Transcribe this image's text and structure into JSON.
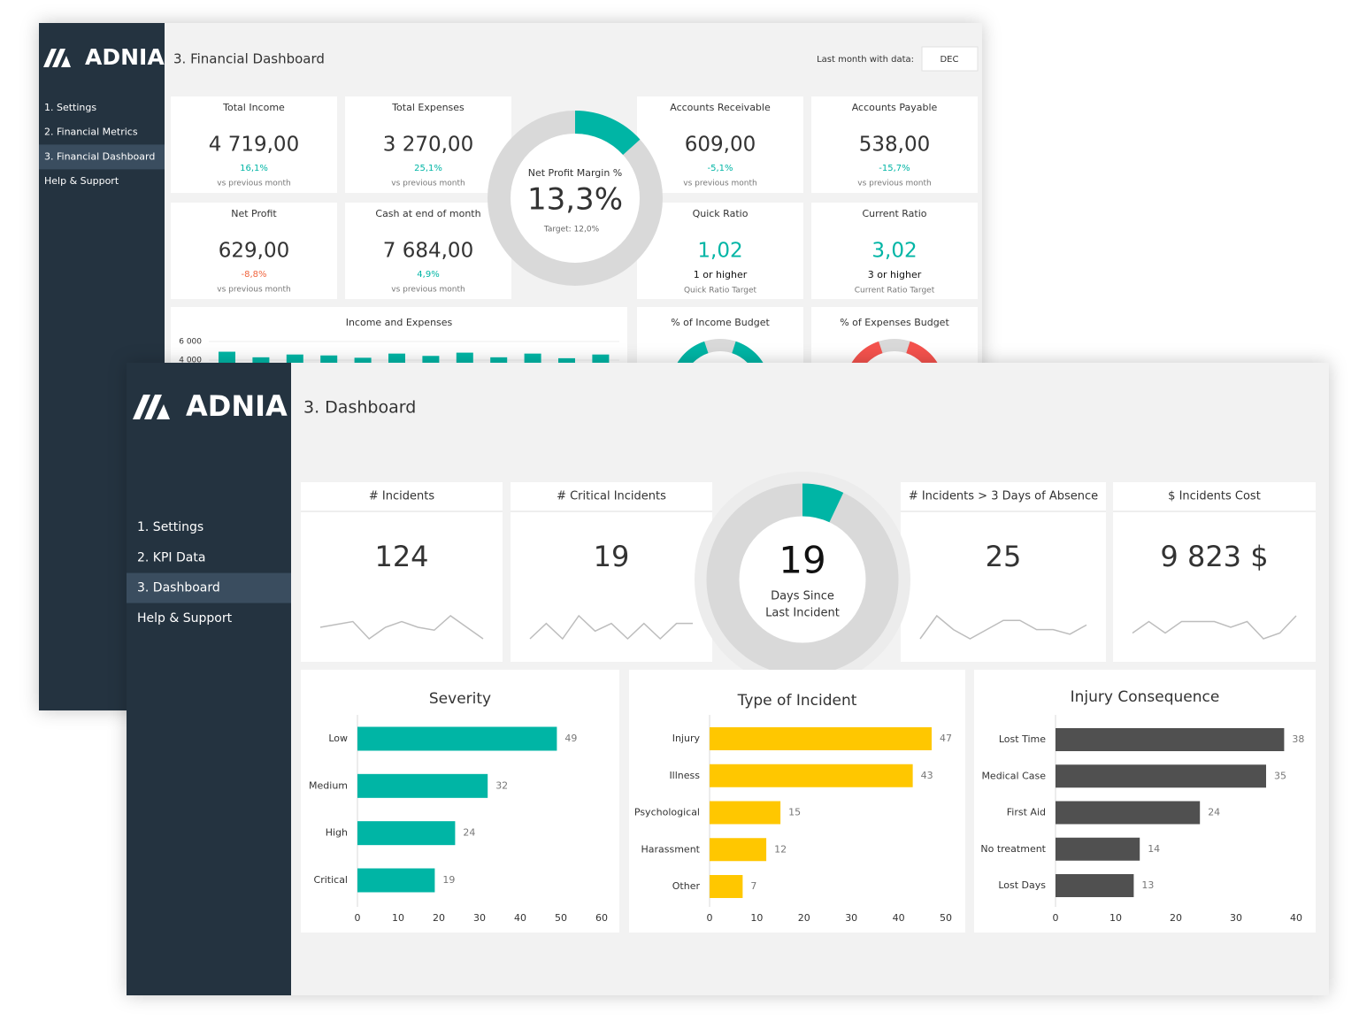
{
  "back": {
    "logo": "ADNIA",
    "title": "3. Financial Dashboard",
    "last_month_label": "Last month with data:",
    "last_month": "DEC",
    "nav": [
      "1. Settings",
      "2. Financial Metrics",
      "3. Financial Dashboard",
      "Help & Support"
    ],
    "active_nav": 2,
    "kpis": [
      {
        "title": "Total Income",
        "value": "4 719,00",
        "change": "16,1%",
        "change_color": "#00b5a5",
        "note": "vs previous month"
      },
      {
        "title": "Total Expenses",
        "value": "3 270,00",
        "change": "25,1%",
        "change_color": "#00b5a5",
        "note": "vs previous month"
      },
      {
        "title": "Accounts Receivable",
        "value": "609,00",
        "change": "-5,1%",
        "change_color": "#00b5a5",
        "note": "vs previous month"
      },
      {
        "title": "Accounts Payable",
        "value": "538,00",
        "change": "-15,7%",
        "change_color": "#00b5a5",
        "note": "vs previous month"
      },
      {
        "title": "Net Profit",
        "value": "629,00",
        "change": "-8,8%",
        "change_color": "#f0653f",
        "note": "vs previous month"
      },
      {
        "title": "Cash at end of month",
        "value": "7 684,00",
        "change": "4,9%",
        "change_color": "#00b5a5",
        "note": "vs previous month"
      }
    ],
    "margin": {
      "type": "donut",
      "title": "Net Profit Margin %",
      "value": 13.3,
      "value_label": "13,3%",
      "target": "Target: 12,0%",
      "color": "#00b5a5"
    },
    "ratios": [
      {
        "title": "Quick Ratio",
        "value": "1,02",
        "target": "1 or higher",
        "note": "Quick Ratio Target"
      },
      {
        "title": "Current Ratio",
        "value": "3,02",
        "target": "3 or higher",
        "note": "Current Ratio Target"
      }
    ],
    "income_chart": {
      "type": "bar",
      "title": "Income and Expenses",
      "values": [
        4900,
        4300,
        4600,
        4500,
        4250,
        4700,
        4450,
        4800,
        4300,
        4700,
        4200,
        4600
      ],
      "color": "#00b5a5",
      "ylim": [
        0,
        6000
      ],
      "yticks": [
        {
          "value": 4000,
          "label": "4 000"
        },
        {
          "value": 6000,
          "label": "6 000"
        }
      ]
    },
    "budgets": [
      {
        "type": "donut",
        "title": "% of Income Budget",
        "value": 90,
        "color": "#00b5a5"
      },
      {
        "type": "donut",
        "title": "% of Expenses Budget",
        "value": 90,
        "color": "#f4524d"
      }
    ]
  },
  "front": {
    "logo": "ADNIA",
    "title": "3. Dashboard",
    "nav": [
      "1. Settings",
      "2. KPI Data",
      "3. Dashboard",
      "Help & Support"
    ],
    "active_nav": 2,
    "kpis": [
      {
        "title": "# Incidents",
        "value": "124",
        "sparkline": [
          5,
          5.5,
          6,
          3,
          5,
          6,
          5,
          4.5,
          7,
          5,
          3
        ]
      },
      {
        "title": "# Critical Incidents",
        "value": "19",
        "sparkline": [
          4,
          6,
          4,
          7,
          5,
          6,
          4,
          6,
          4,
          6,
          6
        ]
      },
      {
        "title": "# Incidents > 3 Days of Absence",
        "value": "25",
        "sparkline": [
          2,
          7,
          4,
          2,
          4,
          6,
          6,
          4,
          4,
          3,
          5
        ]
      },
      {
        "title": "$ Incidents Cost",
        "value": "9 823 $",
        "sparkline": [
          4,
          6,
          4,
          6,
          6,
          6,
          5,
          6,
          3,
          4,
          7
        ]
      }
    ],
    "days": {
      "type": "donut",
      "value": "19",
      "label_1": "Days Since",
      "label_2": "Last Incident",
      "ring_percent": 7,
      "color": "#00b5a5"
    },
    "charts": [
      {
        "type": "bar",
        "title": "Severity",
        "categories": [
          "Low",
          "Medium",
          "High",
          "Critical"
        ],
        "values": [
          49,
          32,
          24,
          19
        ],
        "color": "#00b5a5",
        "xlim": [
          0,
          60
        ],
        "xticks": [
          0,
          10,
          20,
          30,
          40,
          50,
          60
        ]
      },
      {
        "type": "bar",
        "title": "Type of Incident",
        "categories": [
          "Injury",
          "Illness",
          "Psychological",
          "Harassment",
          "Other"
        ],
        "values": [
          47,
          43,
          15,
          12,
          7
        ],
        "color": "#ffc700",
        "xlim": [
          0,
          50
        ],
        "xticks": [
          0,
          10,
          20,
          30,
          40,
          50
        ]
      },
      {
        "type": "bar",
        "title": "Injury Consequence",
        "categories": [
          "Lost Time",
          "Medical Case",
          "First Aid",
          "No treatment",
          "Lost Days"
        ],
        "values": [
          38,
          35,
          24,
          14,
          13
        ],
        "color": "#505050",
        "xlim": [
          0,
          40
        ],
        "xticks": [
          0,
          10,
          20,
          30,
          40
        ]
      }
    ]
  }
}
